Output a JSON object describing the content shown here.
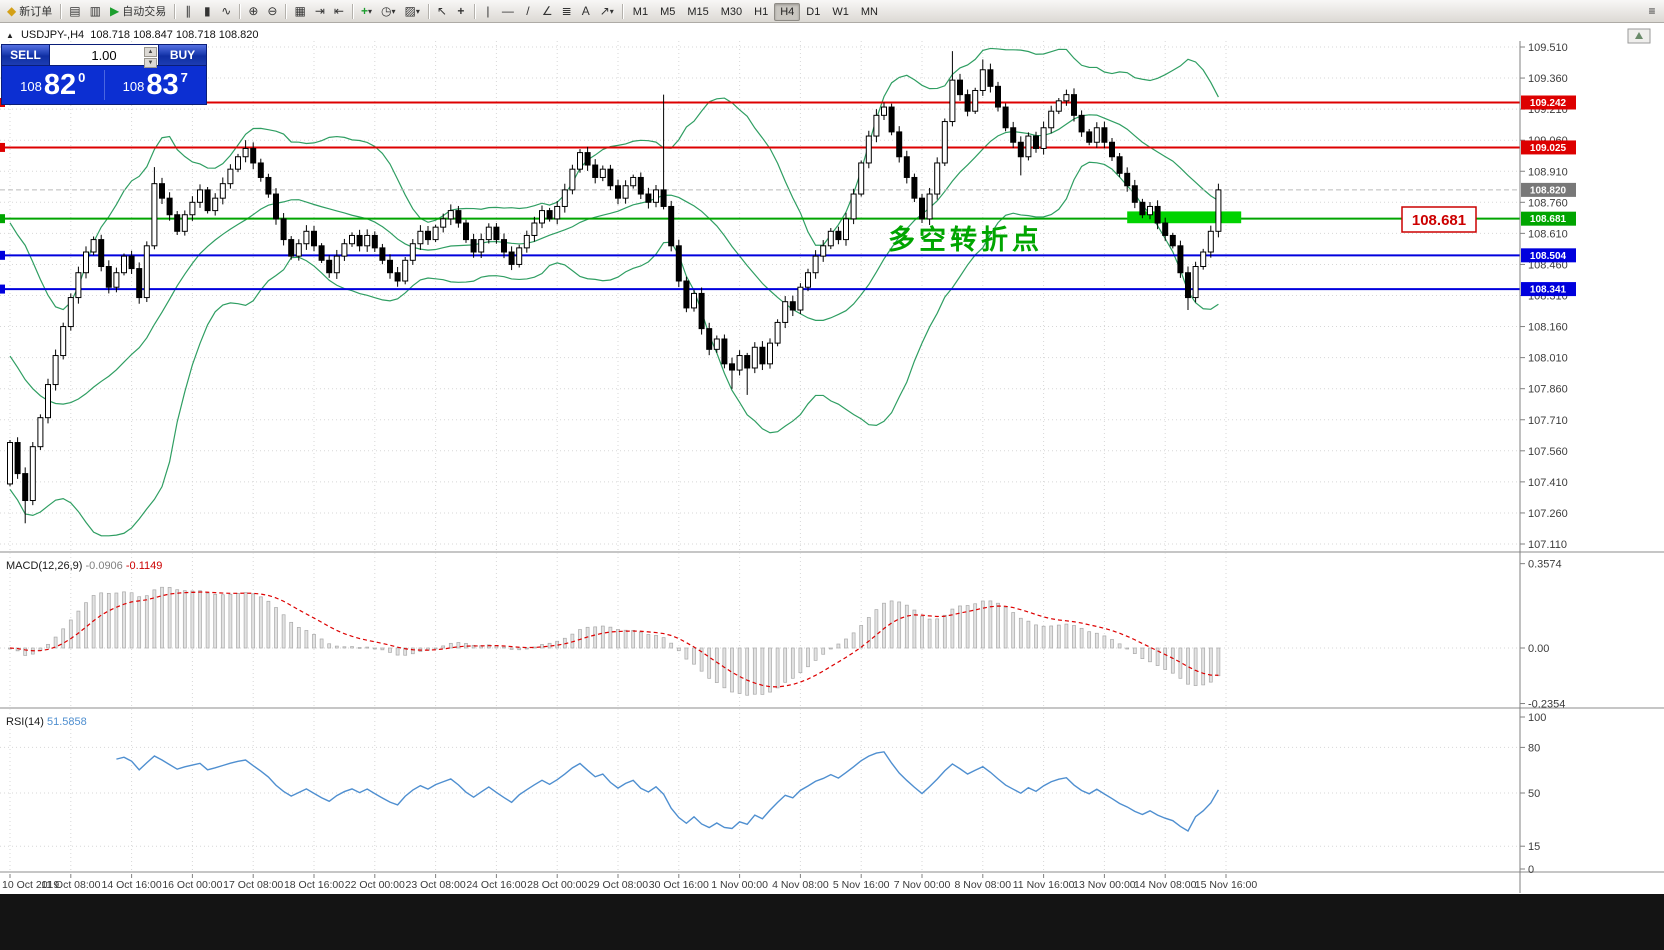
{
  "toolbar": {
    "new_order_label": "新订单",
    "auto_trading_label": "自动交易",
    "timeframes": [
      "M1",
      "M5",
      "M15",
      "M30",
      "H1",
      "H4",
      "D1",
      "W1",
      "MN"
    ],
    "active_timeframe": "H4"
  },
  "chart": {
    "title": "USDJPY-,H4",
    "ohlc_text": "108.718 108.847 108.718 108.820"
  },
  "trade_panel": {
    "sell_label": "SELL",
    "buy_label": "BUY",
    "volume": "1.00",
    "sell_price": {
      "prefix": "108",
      "big": "82",
      "sup": "0"
    },
    "buy_price": {
      "prefix": "108",
      "big": "83",
      "sup": "7"
    }
  },
  "price_axis": {
    "ticks": [
      "109.510",
      "109.360",
      "109.210",
      "109.060",
      "108.910",
      "108.760",
      "108.610",
      "108.460",
      "108.310",
      "108.160",
      "108.010",
      "107.860",
      "107.710",
      "107.560",
      "107.410",
      "107.260",
      "107.110"
    ]
  },
  "time_axis": {
    "labels": [
      {
        "text": "10 Oct 2019",
        "idx": 0
      },
      {
        "text": "11 Oct 08:00",
        "idx": 8
      },
      {
        "text": "14 Oct 16:00",
        "idx": 16
      },
      {
        "text": "16 Oct 00:00",
        "idx": 24
      },
      {
        "text": "17 Oct 08:00",
        "idx": 32
      },
      {
        "text": "18 Oct 16:00",
        "idx": 40
      },
      {
        "text": "22 Oct 00:00",
        "idx": 48
      },
      {
        "text": "23 Oct 08:00",
        "idx": 56
      },
      {
        "text": "24 Oct 16:00",
        "idx": 64
      },
      {
        "text": "28 Oct 00:00",
        "idx": 72
      },
      {
        "text": "29 Oct 08:00",
        "idx": 80
      },
      {
        "text": "30 Oct 16:00",
        "idx": 88
      },
      {
        "text": "1 Nov 00:00",
        "idx": 96
      },
      {
        "text": "4 Nov 08:00",
        "idx": 104
      },
      {
        "text": "5 Nov 16:00",
        "idx": 112
      },
      {
        "text": "7 Nov 00:00",
        "idx": 120
      },
      {
        "text": "8 Nov 08:00",
        "idx": 128
      },
      {
        "text": "11 Nov 16:00",
        "idx": 136
      },
      {
        "text": "13 Nov 00:00",
        "idx": 144
      },
      {
        "text": "14 Nov 08:00",
        "idx": 152
      },
      {
        "text": "15 Nov 16:00",
        "idx": 160
      }
    ]
  },
  "levels": [
    {
      "value": 109.242,
      "label": "109.242",
      "color": "#dd0000",
      "width": 2
    },
    {
      "value": 109.025,
      "label": "109.025",
      "color": "#dd0000",
      "width": 2
    },
    {
      "value": 108.681,
      "label": "108.681",
      "color": "#00a500",
      "width": 2
    },
    {
      "value": 108.504,
      "label": "108.504",
      "color": "#0000dd",
      "width": 2
    },
    {
      "value": 108.341,
      "label": "108.341",
      "color": "#0000dd",
      "width": 2
    }
  ],
  "bid_tag": {
    "label": "108.820",
    "value": 108.82,
    "color": "#787878"
  },
  "annotation": {
    "text": "多空转折点",
    "color": "#00a500"
  },
  "price_label_box": {
    "text": "108.681",
    "color": "#cc0000"
  },
  "highlight_rect": {
    "from_idx": 147,
    "to_idx": 162,
    "price_top": 108.716,
    "price_bottom": 108.659,
    "color": "#00d300"
  },
  "macd_panel": {
    "name": "MACD(12,26,9)",
    "value_main": "-0.0906",
    "value_signal": "-0.1149",
    "scale": [
      {
        "label": "0.3574",
        "value": 0.3574
      },
      {
        "label": "0.00",
        "value": 0
      },
      {
        "label": "-0.2354",
        "value": -0.2354
      }
    ]
  },
  "rsi_panel": {
    "name": "RSI(14)",
    "value": "51.5858",
    "scale": [
      {
        "label": "100",
        "value": 100
      },
      {
        "label": "80",
        "value": 80
      },
      {
        "label": "50",
        "value": 50
      },
      {
        "label": "15",
        "value": 15
      },
      {
        "label": "0",
        "value": 0
      }
    ],
    "level_lines": [
      80,
      50,
      15
    ]
  },
  "chart_data": {
    "type": "candlestick",
    "symbol": "USDJPY-",
    "timeframe": "H4",
    "title": "USDJPY-,H4 108.718 108.847 108.718 108.820",
    "price_axis": {
      "top_tick": 109.51,
      "bottom_tick": 107.11,
      "tick_step": 0.15
    },
    "first_open": 107.4,
    "closes": [
      107.6,
      107.45,
      107.32,
      107.58,
      107.72,
      107.88,
      108.02,
      108.16,
      108.3,
      108.42,
      108.52,
      108.58,
      108.45,
      108.35,
      108.42,
      108.5,
      108.44,
      108.3,
      108.55,
      108.85,
      108.78,
      108.7,
      108.62,
      108.7,
      108.76,
      108.82,
      108.72,
      108.78,
      108.85,
      108.92,
      108.98,
      109.02,
      108.95,
      108.88,
      108.8,
      108.68,
      108.58,
      108.5,
      108.56,
      108.62,
      108.55,
      108.48,
      108.42,
      108.5,
      108.56,
      108.6,
      108.55,
      108.6,
      108.54,
      108.48,
      108.42,
      108.38,
      108.48,
      108.56,
      108.62,
      108.58,
      108.64,
      108.68,
      108.72,
      108.66,
      108.58,
      108.52,
      108.58,
      108.64,
      108.58,
      108.52,
      108.46,
      108.54,
      108.6,
      108.66,
      108.72,
      108.68,
      108.74,
      108.82,
      108.92,
      109.0,
      108.94,
      108.88,
      108.92,
      108.84,
      108.78,
      108.84,
      108.88,
      108.8,
      108.76,
      108.82,
      108.74,
      108.55,
      108.38,
      108.25,
      108.32,
      108.15,
      108.05,
      108.1,
      107.98,
      107.95,
      108.02,
      107.96,
      108.06,
      107.98,
      108.08,
      108.18,
      108.28,
      108.24,
      108.35,
      108.42,
      108.5,
      108.55,
      108.62,
      108.58,
      108.68,
      108.8,
      108.95,
      109.08,
      109.18,
      109.22,
      109.1,
      108.98,
      108.88,
      108.78,
      108.68,
      108.8,
      108.95,
      109.15,
      109.35,
      109.28,
      109.2,
      109.3,
      109.4,
      109.32,
      109.22,
      109.12,
      109.05,
      108.98,
      109.08,
      109.02,
      109.12,
      109.2,
      109.25,
      109.28,
      109.18,
      109.1,
      109.05,
      109.12,
      109.05,
      108.98,
      108.9,
      108.84,
      108.76,
      108.7,
      108.74,
      108.66,
      108.6,
      108.55,
      108.42,
      108.3,
      108.45,
      108.52,
      108.62,
      108.82
    ],
    "wick_overrides": {
      "2": {
        "low": 107.21
      },
      "19": {
        "high": 108.93
      },
      "31": {
        "high": 109.06
      },
      "86": {
        "high": 109.28
      },
      "95": {
        "low": 107.86
      },
      "97": {
        "low": 107.83
      },
      "124": {
        "high": 109.49
      },
      "128": {
        "high": 109.45
      },
      "133": {
        "low": 108.89
      },
      "155": {
        "low": 108.24
      },
      "159": {
        "high": 108.85
      }
    },
    "bollinger_seed": [
      108.6,
      108.55,
      108.5,
      108.45,
      108.4,
      108.35,
      108.3,
      108.22,
      108.15,
      108.08,
      108.0,
      107.95,
      107.9,
      107.85,
      107.8,
      107.75,
      107.7,
      107.65,
      107.6,
      107.55
    ],
    "overlays": [
      {
        "name": "Bollinger Bands",
        "period": 20,
        "deviation": 2,
        "color": "#2f9e62"
      }
    ],
    "horizontal_lines": [
      109.242,
      109.025,
      108.681,
      108.504,
      108.341
    ],
    "last_bid": 108.82
  }
}
